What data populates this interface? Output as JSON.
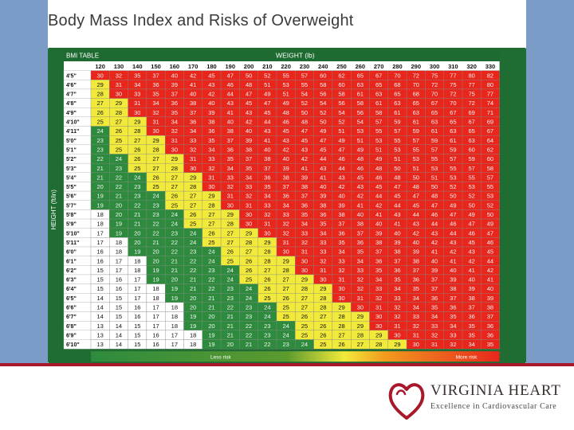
{
  "title": "Body Mass Index and Risks of Overweight",
  "footer": {
    "brand_name": "VIRGINIA HEART",
    "tagline": "Excellence in Cardiovascular Care",
    "brand_color": "#a8182a"
  },
  "chart_data": {
    "type": "table",
    "table_label": "BMI TABLE",
    "xlabel": "WEIGHT (lb)",
    "ylabel": "HEIGHT (ft/in)",
    "weights": [
      120,
      130,
      140,
      150,
      160,
      170,
      180,
      190,
      200,
      210,
      220,
      230,
      240,
      250,
      260,
      270,
      280,
      290,
      300,
      310,
      320,
      330
    ],
    "heights": [
      "4'5\"",
      "4'6\"",
      "4'7\"",
      "4'8\"",
      "4'9\"",
      "4'10\"",
      "4'11\"",
      "5'0\"",
      "5'1\"",
      "5'2\"",
      "5'3\"",
      "5'4\"",
      "5'5\"",
      "5'6\"",
      "5'7\"",
      "5'8\"",
      "5'9\"",
      "5'10\"",
      "5'11\"",
      "6'0\"",
      "6'1\"",
      "6'2\"",
      "6'3\"",
      "6'4\"",
      "6'5\"",
      "6'6\"",
      "6'7\"",
      "6'8\"",
      "6'9\"",
      "6'10\""
    ],
    "values": [
      [
        30,
        32,
        35,
        37,
        40,
        42,
        45,
        47,
        50,
        52,
        55,
        57,
        60,
        62,
        65,
        67,
        70,
        72,
        75,
        77,
        80,
        82
      ],
      [
        29,
        31,
        34,
        36,
        39,
        41,
        43,
        46,
        48,
        51,
        53,
        55,
        58,
        60,
        63,
        65,
        68,
        70,
        72,
        75,
        77,
        80
      ],
      [
        28,
        30,
        33,
        35,
        37,
        40,
        42,
        44,
        47,
        49,
        51,
        54,
        56,
        58,
        61,
        63,
        65,
        68,
        70,
        72,
        75,
        77
      ],
      [
        27,
        29,
        31,
        34,
        36,
        38,
        40,
        43,
        45,
        47,
        49,
        52,
        54,
        56,
        58,
        61,
        63,
        65,
        67,
        70,
        72,
        74
      ],
      [
        26,
        28,
        30,
        32,
        35,
        37,
        39,
        41,
        43,
        45,
        48,
        50,
        52,
        54,
        56,
        58,
        61,
        63,
        65,
        67,
        69,
        71
      ],
      [
        25,
        27,
        29,
        31,
        34,
        36,
        38,
        40,
        42,
        44,
        46,
        48,
        50,
        52,
        54,
        57,
        59,
        61,
        63,
        65,
        67,
        69
      ],
      [
        24,
        26,
        28,
        30,
        32,
        34,
        36,
        38,
        40,
        43,
        45,
        47,
        49,
        51,
        53,
        55,
        57,
        59,
        61,
        63,
        65,
        67
      ],
      [
        23,
        25,
        27,
        29,
        31,
        33,
        35,
        37,
        39,
        41,
        43,
        45,
        47,
        49,
        51,
        53,
        55,
        57,
        59,
        61,
        63,
        64
      ],
      [
        23,
        25,
        26,
        28,
        30,
        32,
        34,
        36,
        38,
        40,
        42,
        43,
        45,
        47,
        49,
        51,
        53,
        55,
        57,
        59,
        60,
        62
      ],
      [
        22,
        24,
        26,
        27,
        29,
        31,
        33,
        35,
        37,
        38,
        40,
        42,
        44,
        46,
        48,
        49,
        51,
        53,
        55,
        57,
        59,
        60
      ],
      [
        21,
        23,
        25,
        27,
        28,
        30,
        32,
        34,
        35,
        37,
        39,
        41,
        43,
        44,
        46,
        48,
        50,
        51,
        53,
        55,
        57,
        58
      ],
      [
        21,
        22,
        24,
        26,
        27,
        29,
        31,
        33,
        34,
        36,
        38,
        39,
        41,
        43,
        45,
        46,
        48,
        50,
        51,
        53,
        55,
        57
      ],
      [
        20,
        22,
        23,
        25,
        27,
        28,
        30,
        32,
        33,
        35,
        37,
        38,
        40,
        42,
        43,
        45,
        47,
        48,
        50,
        52,
        53,
        55
      ],
      [
        19,
        21,
        23,
        24,
        26,
        27,
        29,
        31,
        32,
        34,
        36,
        37,
        39,
        40,
        42,
        44,
        45,
        47,
        48,
        50,
        52,
        53
      ],
      [
        19,
        20,
        22,
        23,
        25,
        27,
        28,
        30,
        31,
        33,
        34,
        36,
        38,
        39,
        41,
        42,
        44,
        45,
        47,
        49,
        50,
        52
      ],
      [
        18,
        20,
        21,
        23,
        24,
        26,
        27,
        29,
        30,
        32,
        33,
        35,
        36,
        38,
        40,
        41,
        43,
        44,
        46,
        47,
        49,
        50
      ],
      [
        18,
        19,
        21,
        22,
        24,
        25,
        27,
        28,
        30,
        31,
        32,
        34,
        35,
        37,
        38,
        40,
        41,
        43,
        44,
        46,
        47,
        49
      ],
      [
        17,
        19,
        20,
        22,
        23,
        24,
        26,
        27,
        29,
        30,
        32,
        33,
        34,
        36,
        37,
        39,
        40,
        42,
        43,
        44,
        46,
        47
      ],
      [
        17,
        18,
        20,
        21,
        22,
        24,
        25,
        27,
        28,
        29,
        31,
        32,
        33,
        35,
        36,
        38,
        39,
        40,
        42,
        43,
        45,
        46
      ],
      [
        16,
        18,
        19,
        20,
        22,
        23,
        24,
        26,
        27,
        28,
        30,
        31,
        33,
        34,
        35,
        37,
        38,
        39,
        41,
        42,
        43,
        45
      ],
      [
        16,
        17,
        18,
        20,
        21,
        22,
        24,
        25,
        26,
        28,
        29,
        30,
        32,
        33,
        34,
        36,
        37,
        38,
        40,
        41,
        42,
        44
      ],
      [
        15,
        17,
        18,
        19,
        21,
        22,
        23,
        24,
        26,
        27,
        28,
        30,
        31,
        32,
        33,
        35,
        36,
        37,
        39,
        40,
        41,
        42
      ],
      [
        15,
        16,
        17,
        19,
        20,
        21,
        22,
        24,
        25,
        26,
        27,
        29,
        30,
        31,
        32,
        34,
        35,
        36,
        37,
        39,
        40,
        41
      ],
      [
        15,
        16,
        17,
        18,
        19,
        21,
        22,
        23,
        24,
        26,
        27,
        28,
        29,
        30,
        32,
        33,
        34,
        35,
        37,
        38,
        39,
        40
      ],
      [
        14,
        15,
        17,
        18,
        19,
        20,
        21,
        23,
        24,
        25,
        26,
        27,
        28,
        30,
        31,
        32,
        33,
        34,
        36,
        37,
        38,
        39
      ],
      [
        14,
        15,
        16,
        17,
        18,
        20,
        21,
        22,
        23,
        24,
        25,
        27,
        28,
        29,
        30,
        31,
        32,
        34,
        35,
        36,
        37,
        38
      ],
      [
        14,
        15,
        16,
        17,
        18,
        19,
        20,
        21,
        23,
        24,
        25,
        26,
        27,
        28,
        29,
        30,
        32,
        33,
        34,
        35,
        36,
        37
      ],
      [
        13,
        14,
        15,
        17,
        18,
        19,
        20,
        21,
        22,
        23,
        24,
        25,
        26,
        28,
        29,
        30,
        31,
        32,
        33,
        34,
        35,
        36
      ],
      [
        13,
        14,
        15,
        16,
        17,
        18,
        19,
        21,
        22,
        23,
        24,
        25,
        26,
        27,
        28,
        29,
        30,
        31,
        32,
        33,
        35,
        36
      ],
      [
        13,
        14,
        15,
        16,
        17,
        18,
        19,
        20,
        21,
        22,
        23,
        24,
        25,
        26,
        27,
        28,
        29,
        30,
        31,
        32,
        34,
        35
      ]
    ],
    "risk_legend": {
      "low_label": "Less risk",
      "high_label": "More risk"
    },
    "color_scale": {
      "underweight": "#ffffff",
      "normal": "#2e8b3e",
      "overweight": "#f2ea3a",
      "obese": "#e8261c"
    }
  }
}
